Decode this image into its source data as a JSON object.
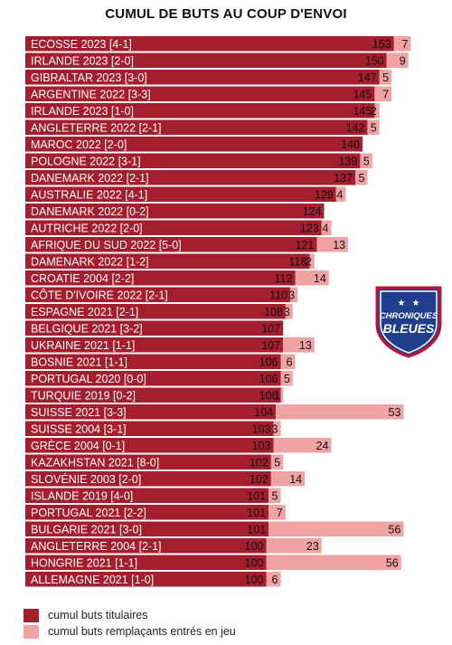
{
  "chart_data": {
    "type": "bar",
    "stacked": true,
    "orientation": "horizontal",
    "title": "CUMUL DE BUTS AU COUP D'ENVOI",
    "categories": [
      "ECOSSE 2023 [4-1]",
      "IRLANDE 2023 [2-0]",
      "GIBRALTAR 2023 [3-0]",
      "ARGENTINE 2022 [3-3]",
      "IRLANDE 2023 [1-0]",
      "ANGLETERRE 2022 [2-1]",
      "MAROC 2022 [2-0]",
      "POLOGNE 2022 [3-1]",
      "DANEMARK 2022 [2-1]",
      "AUSTRALIE 2022 [4-1]",
      "DANEMARK 2022 [0-2]",
      "AUTRICHE 2022 [2-0]",
      "AFRIQUE DU SUD 2022 [5-0]",
      "DAMENARK 2022 [1-2]",
      "CROATIE 2004 [2-2]",
      "CÔTE D'IVOIRE 2022 [2-1]",
      "ESPAGNE 2021 [2-1]",
      "BELGIQUE 2021 [3-2]",
      "UKRAINE 2021 [1-1]",
      "BOSNIE 2021 [1-1]",
      "PORTUGAL 2020 [0-0]",
      "TURQUIE 2019 [0-2]",
      "SUISSE 2021 [3-3]",
      "SUISSE 2004 [3-1]",
      "GRÈCE 2004 [0-1]",
      "KAZAKHSTAN 2021 [8-0]",
      "SLOVÉNIE 2003 [2-0]",
      "ISLANDE 2019 [4-0]",
      "PORTUGAL 2021 [2-2]",
      "BULGARIE 2021 [3-0]",
      "ANGLETERRE 2004 [2-1]",
      "HONGRIE 2021 [1-1]",
      "ALLEMAGNE 2021 [1-0]"
    ],
    "series": [
      {
        "name": "cumul buts titulaires",
        "color": "#a51e2d",
        "values": [
          153,
          150,
          147,
          145,
          145,
          142,
          140,
          139,
          137,
          129,
          124,
          123,
          121,
          118,
          112,
          110,
          108,
          107,
          107,
          106,
          106,
          106,
          104,
          103,
          103,
          102,
          102,
          101,
          101,
          101,
          100,
          100,
          100
        ]
      },
      {
        "name": "cumul buts remplaçants entrés en jeu",
        "color": "#f0a3a2",
        "values": [
          7,
          9,
          5,
          7,
          2,
          5,
          null,
          5,
          5,
          4,
          null,
          4,
          13,
          2,
          14,
          3,
          3,
          null,
          13,
          6,
          5,
          1,
          53,
          3,
          24,
          5,
          14,
          5,
          7,
          56,
          23,
          56,
          6
        ]
      }
    ],
    "xlim": [
      0,
      170
    ],
    "grid": false,
    "legend_position": "bottom-left"
  },
  "badge": {
    "line1": "CHRONIQUES",
    "line2": "BLEUES",
    "icon": "shield-icon",
    "colors": {
      "fill": "#1f3f8c",
      "outline": "#c8102e",
      "stars": "#ffffff"
    }
  }
}
